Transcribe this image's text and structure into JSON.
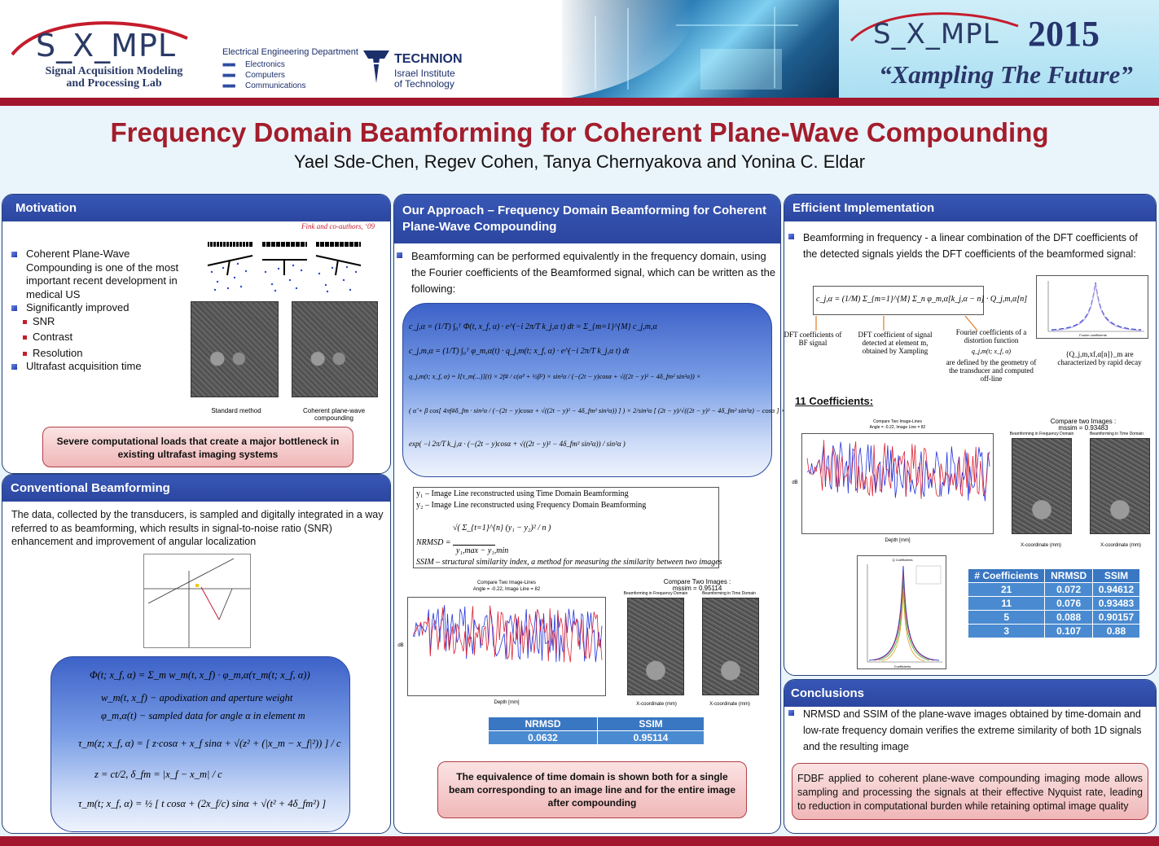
{
  "header": {
    "lab_logo": "S_X_MPL",
    "lab_name_line1": "Signal Acquisition Modeling",
    "lab_name_line2": "and Processing Lab",
    "dept_title": "Electrical Engineering Department",
    "dept_items": [
      "Electronics",
      "Computers",
      "Communications"
    ],
    "technion_name": "TECHNION",
    "technion_sub1": "Israel Institute",
    "technion_sub2": "of Technology",
    "banner_logo": "S_X_MPL",
    "banner_year": "2015",
    "banner_tagline": "“Xampling The Future”"
  },
  "title": "Frequency Domain Beamforming for Coherent Plane-Wave Compounding",
  "authors": "Yael Sde-Chen, Regev Cohen, Tanya Chernyakova and Yonina C. Eldar",
  "motivation": {
    "heading": "Motivation",
    "citation": "Fink and co-authors, ‘09",
    "bullets": [
      "Coherent Plane-Wave Compounding is one of the most important recent development in medical US",
      "Significantly improved"
    ],
    "sub_bullets": [
      "SNR",
      "Contrast",
      "Resolution"
    ],
    "last_bullet": "Ultrafast acquisition time",
    "caption_left": "Standard method",
    "caption_right": "Coherent plane-wave compounding",
    "red_note": "Severe computational loads that create a major bottleneck in existing ultrafast imaging systems"
  },
  "conventional": {
    "heading": "Conventional Beamforming",
    "text": "The data, collected by the transducers, is sampled and digitally integrated in a way referred to as beamforming, which results in signal-to-noise ratio (SNR) enhancement and improvement of angular localization",
    "eq1": "Φ(t; x_f, α) = Σ_m w_m(t, x_f) · φ_m,α(τ_m(t; x_f, α))",
    "eq2": "w_m(t, x_f) − apodixation and aperture weight",
    "eq3": "φ_m,α(t) − sampled data for angle α in element m",
    "eq4": "τ_m(z; x_f, α) = [ z·cosα + x_f sinα + √(z² + (|x_m − x_f|²)) ] / c",
    "eq5": "z = ct/2, δ_fm = |x_f − x_m| / c",
    "eq6": "τ_m(t; x_f, α) = ½ [ t cosα + (2x_f/c) sinα + √(t² + 4δ_fm²) ]"
  },
  "approach": {
    "heading": "Our Approach – Frequency Domain Beamforming for Coherent Plane-Wave Compounding",
    "text": "Beamforming can be performed equivalently in the frequency domain, using the Fourier coefficients of the Beamformed signal, which can be written as the following:",
    "eq1": "c_j,α = (1/T) ∫₀ᵀ Φ(t, x_f, α) · e^(−i 2π/T k_j,α t) dt = Σ_{m=1}^{M} c_j,m,α",
    "eq2": "c_j,m,α = (1/T) ∫₀ᵀ φ_m,α(t) · q_j,m(t; x_f, α) · e^(−i 2π/T k_j,α t) dt",
    "eq3": "q_j,m(t; x_f, α) = I[τ_m(...)](t) × 2f# / c(α̃² + ½β²) × sin²α / (−(2t − y)cosα + √((2t − y)² − 4δ_fm² sin²α)) ×",
    "eq4": "( α̃ + β cos[ 4πf#δ_fm · sin²α / (−(2t − y)cosα + √((2t − y)² − 4δ_fm² sin²α)) ] ) × 2/sin²α [ (2t − y)/√((2t − y)² − 4δ_fm² sin²α) − cosα ] ×",
    "eq5": "exp( −i 2π/T k_j,α · (−(2t − y)cosα + √((2t − y)² − 4δ_fm² sin²α)) / sin²α )",
    "def1": "y₁ – Image Line reconstructed using Time Domain Beamforming",
    "def2": "y₂ – Image Line reconstructed using Frequency Domain Beamforming",
    "nrmsd_lhs": "NRMSD =",
    "nrmsd_num": "√( Σ_{t=1}^{n} (y₁ − y₂)² / n )",
    "nrmsd_den": "y₁,max − y₁,min",
    "ssim_def": "SSIM – structural similarity index, a method for measuring the similarity between two images",
    "plot_title": "Compare Two Image-Lines",
    "plot_subtitle": "Angle = -0.22, Image Line = 82",
    "plot_xlabel": "Depth [mm]",
    "plot_ylabel": "dB",
    "img_title": "Compare Two Images :",
    "img_subtitle": "mssim = 0.95114",
    "img_left_label": "Beamforming in Frequency Domain",
    "img_right_label": "Beamforming in Time Domain",
    "img_xlabel": "X-coordinate (mm)",
    "img_ylabel": "Depth (mm)",
    "table_headers": [
      "NRMSD",
      "SSIM"
    ],
    "table_values": [
      "0.0632",
      "0.95114"
    ],
    "red_note": "The equivalence of time domain is shown both for a single beam corresponding to an image line and for the entire image after compounding"
  },
  "efficient": {
    "heading": "Efficient Implementation",
    "text": "Beamforming in frequency - a linear combination of the DFT coefficients of the detected signals yields the DFT coefficients of the beamformed signal:",
    "eq": "c_j,α = (1/M) Σ_{m=1}^{M} Σ_n φ_m,α[k_j,α − n] · Q_j,m,α[n]",
    "label1": "DFT coefficients of BF signal",
    "label2": "DFT coefficient of signal detected at element m, obtained by Xampling",
    "label3_a": "Fourier coefficients of a distortion function",
    "label3_b": "q_j,m(t; x_f, α)",
    "label3_c": "are defined by the geometry of the transducer and computed off-line",
    "decay_note": "{Q_j,m,xf,α[n]}_m are characterized by rapid decay",
    "decay_plot_xlabel": "Fourier coefficients",
    "coeff_heading": "11 Coefficients:",
    "plot_title": "Compare Two Image-Lines",
    "plot_subtitle": "Angle = -0.22, Image Line = 82",
    "plot_xlabel": "Depth [mm]",
    "plot_ylabel": "dB",
    "img_title": "Compare two Images :",
    "img_subtitle": "mssim = 0.93483",
    "img_left_label": "Beamforming in Frequency Domain",
    "img_right_label": "Beamforming in Time Domain",
    "img_xlabel": "X-coordinate (mm)",
    "img_ylabel": "Depth (mm)",
    "coef_plot_title": "Q Coefficients",
    "coef_plot_xlabel": "Coefficients",
    "table_headers": [
      "# Coefficients",
      "NRMSD",
      "SSIM"
    ],
    "table_rows": [
      [
        "21",
        "0.072",
        "0.94612"
      ],
      [
        "11",
        "0.076",
        "0.93483"
      ],
      [
        "5",
        "0.088",
        "0.90157"
      ],
      [
        "3",
        "0.107",
        "0.88"
      ]
    ]
  },
  "conclusions": {
    "heading": "Conclusions",
    "text": "NRMSD and SSIM of the plane-wave images obtained by time-domain and low-rate frequency domain verifies the extreme similarity of both 1D signals and the resulting image",
    "red_note": "FDBF applied to coherent plane-wave compounding imaging mode allows sampling and processing the signals at their effective Nyquist rate, leading to reduction in computational burden while retaining optimal image quality"
  }
}
